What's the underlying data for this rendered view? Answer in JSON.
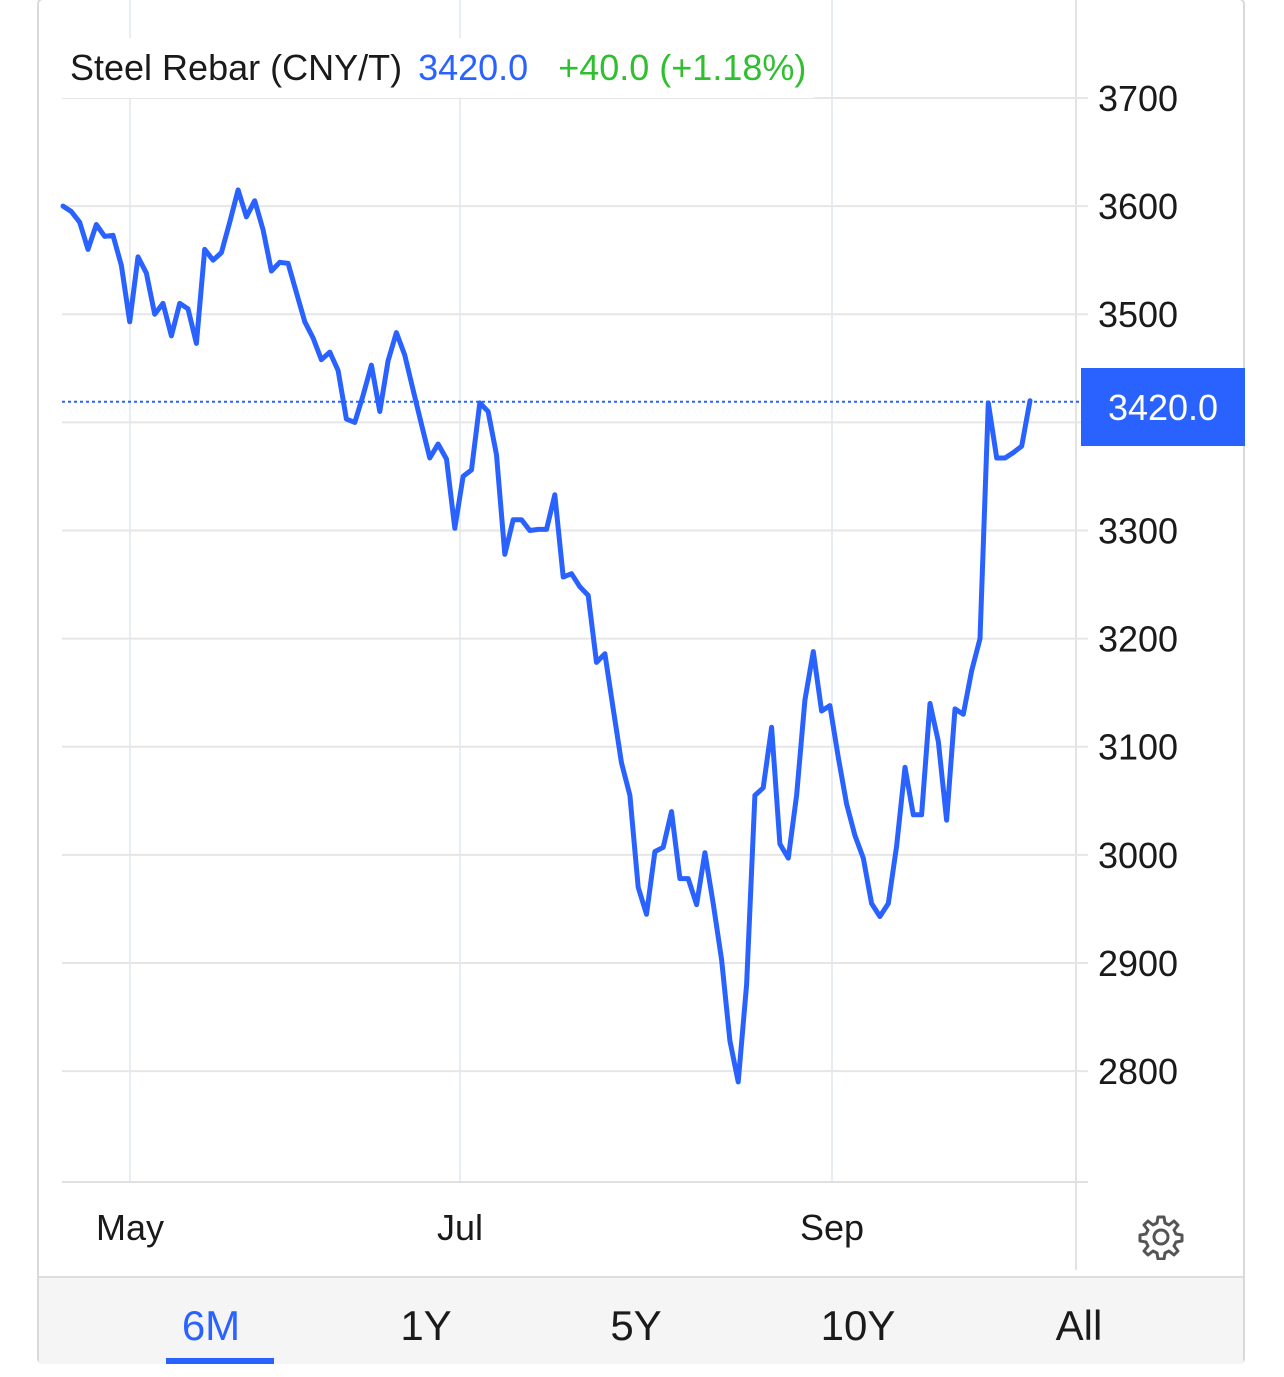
{
  "header": {
    "title": "Steel Rebar (CNY/T)",
    "price": "3420.0",
    "change": "+40.0 (+1.18%)"
  },
  "current_price_label": "3420.0",
  "colors": {
    "line": "#2962ff",
    "positive": "#2fbf2f",
    "grid": "#e6e6e6",
    "text": "#1a1a1a"
  },
  "tabs": [
    {
      "label": "6M",
      "active": true
    },
    {
      "label": "1Y",
      "active": false
    },
    {
      "label": "5Y",
      "active": false
    },
    {
      "label": "10Y",
      "active": false
    },
    {
      "label": "All",
      "active": false
    }
  ],
  "settings_icon": "gear-icon",
  "chart_data": {
    "type": "line",
    "title": "Steel Rebar (CNY/T)",
    "xlabel": "",
    "ylabel": "",
    "x_tick_labels": [
      "May",
      "Jul",
      "Sep"
    ],
    "y_ticks": [
      3700,
      3600,
      3500,
      3300,
      3200,
      3100,
      3000,
      2900,
      2800
    ],
    "ylim": [
      2700,
      3700
    ],
    "grid": true,
    "legend": "none",
    "current_value": 3420.0,
    "series": [
      {
        "values": [
          3600,
          3595,
          3585,
          3560,
          3583,
          3572,
          3573,
          3545,
          3493,
          3553,
          3538,
          3500,
          3510,
          3480,
          3510,
          3505,
          3473,
          3560,
          3550,
          3557,
          3585,
          3615,
          3590,
          3605,
          3578,
          3540,
          3548,
          3547,
          3520,
          3493,
          3478,
          3458,
          3465,
          3448,
          3403,
          3400,
          3425,
          3453,
          3410,
          3457,
          3483,
          3462,
          3430,
          3398,
          3367,
          3380,
          3366,
          3302,
          3350,
          3356,
          3418,
          3410,
          3370,
          3278,
          3310,
          3310,
          3300,
          3301,
          3301,
          3333,
          3257,
          3260,
          3248,
          3240,
          3178,
          3186,
          3135,
          3085,
          3055,
          2970,
          2945,
          3003,
          3007,
          3040,
          2978,
          2978,
          2954,
          3002,
          2955,
          2903,
          2828,
          2790,
          2880,
          3055,
          3062,
          3118,
          3010,
          2997,
          3055,
          3143,
          3188,
          3133,
          3138,
          3090,
          3047,
          3018,
          2997,
          2955,
          2943,
          2955,
          3008,
          3081,
          3037,
          3037,
          3140,
          3105,
          3032,
          3135,
          3130,
          3170,
          3200,
          3418,
          3367,
          3367,
          3372,
          3378,
          3420
        ]
      }
    ]
  }
}
